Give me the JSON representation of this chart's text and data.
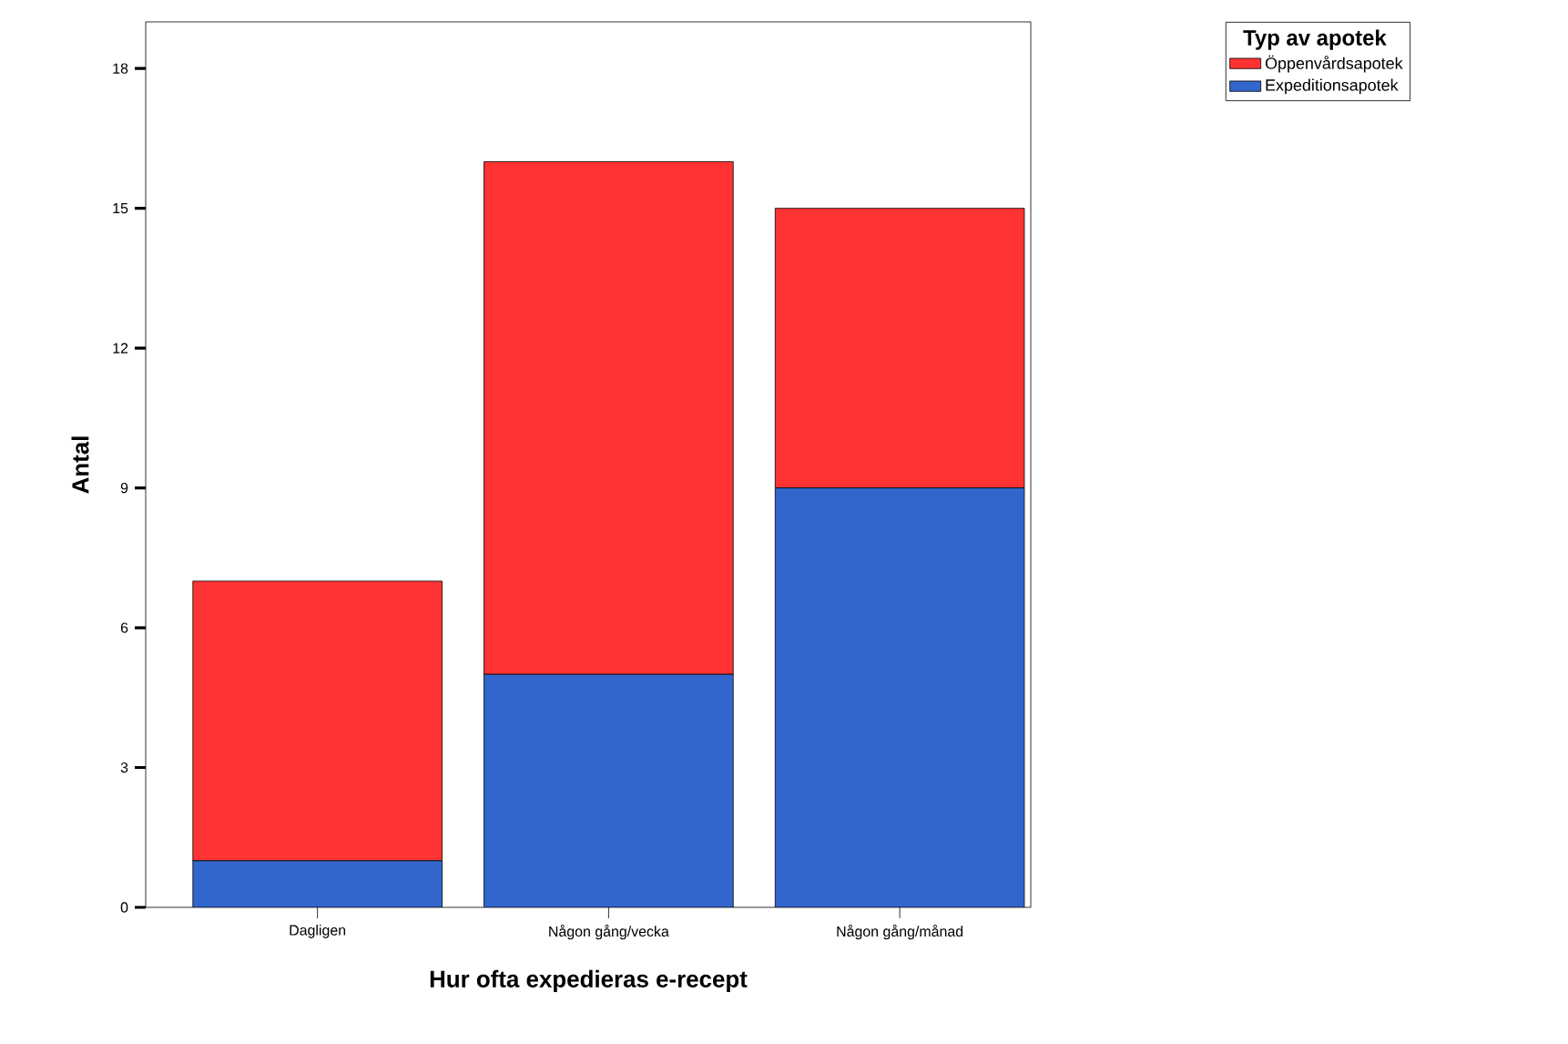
{
  "chart_data": {
    "type": "bar",
    "stacked": true,
    "xlabel": "Hur ofta expedieras e-recept",
    "ylabel": "Antal",
    "legend_title": "Typ av apotek",
    "categories": [
      "Dagligen",
      "Någon gång/vecka",
      "Någon gång/månad"
    ],
    "series": [
      {
        "name": "Expeditionsapotek",
        "color": "#3366cc",
        "values": [
          1,
          5,
          9
        ]
      },
      {
        "name": "Öppenvårdsapotek",
        "color": "#ff3333",
        "values": [
          6,
          11,
          6
        ]
      }
    ],
    "ylim": [
      0,
      19
    ],
    "yticks": [
      0,
      3,
      6,
      9,
      12,
      15,
      18
    ],
    "grid": false,
    "legend": "top right"
  }
}
